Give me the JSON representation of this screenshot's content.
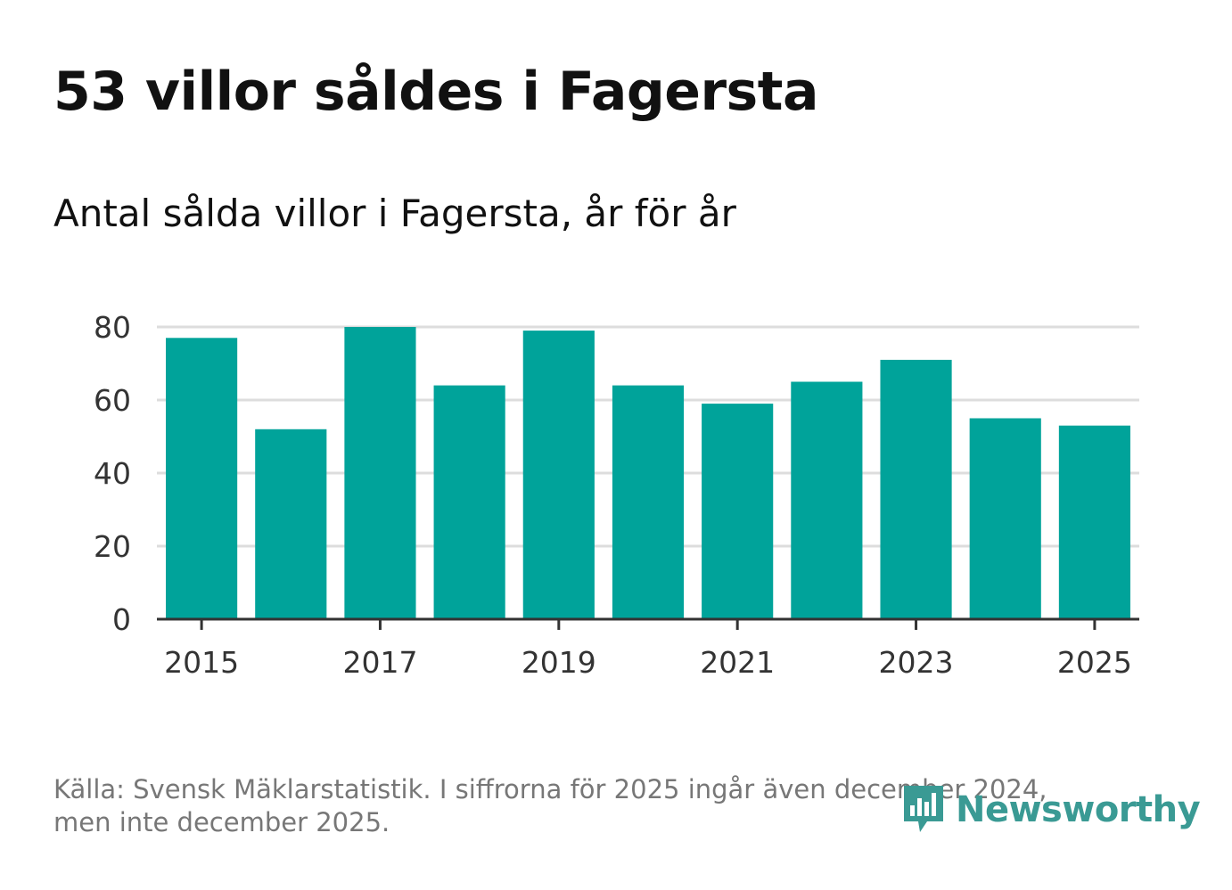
{
  "header": {
    "title": "53 villor såldes i Fagersta",
    "subtitle": "Antal sålda villor i Fagersta, år för år"
  },
  "footer": {
    "source_line1": "Källa: Svensk Mäklarstatistik. I siffrorna för 2025 ingår även december 2024,",
    "source_line2": "men inte december 2025.",
    "brand": "Newsworthy",
    "brand_icon": "bar-chart-speech-bubble-icon"
  },
  "colors": {
    "bar": "#00A39A",
    "grid": "#dddddd",
    "axis": "#333333",
    "brand": "#3a9a94"
  },
  "chart_data": {
    "type": "bar",
    "categories": [
      "2015",
      "2016",
      "2017",
      "2018",
      "2019",
      "2020",
      "2021",
      "2022",
      "2023",
      "2024",
      "2025"
    ],
    "values": [
      77,
      52,
      80,
      64,
      79,
      64,
      59,
      65,
      71,
      55,
      53
    ],
    "x_tick_labels": [
      "2015",
      "2017",
      "2019",
      "2021",
      "2023",
      "2025"
    ],
    "y_ticks": [
      0,
      20,
      40,
      60,
      80
    ],
    "ylim": [
      0,
      80
    ],
    "grid": true,
    "legend": "none",
    "title": "Antal sålda villor i Fagersta, år för år",
    "xlabel": "",
    "ylabel": ""
  }
}
